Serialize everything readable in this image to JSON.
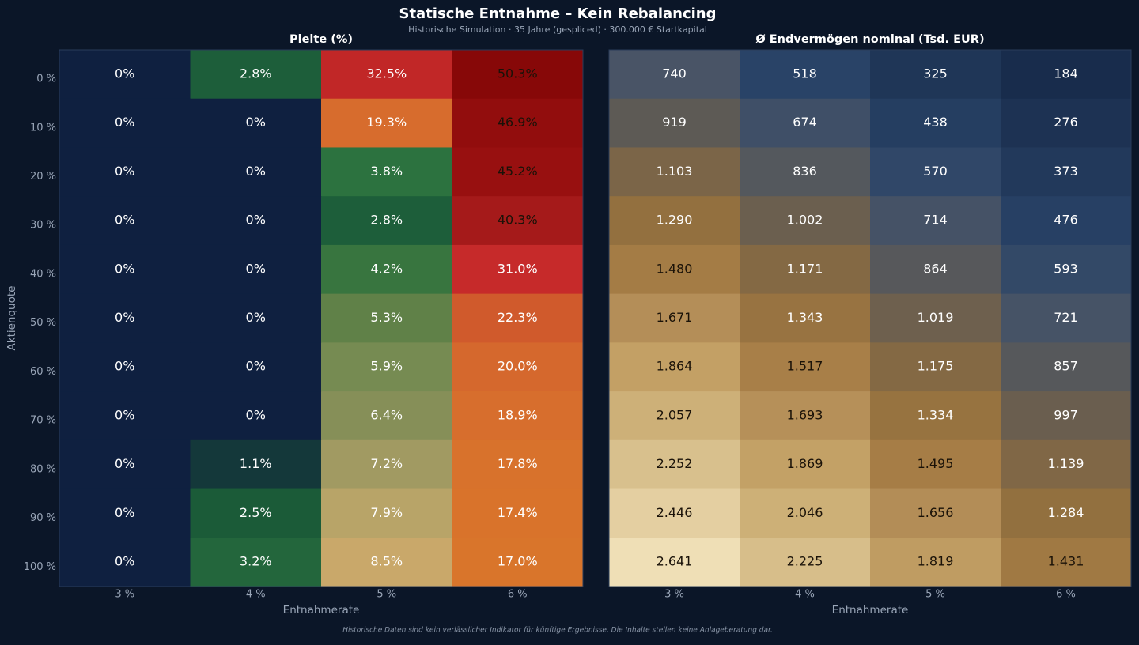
{
  "header": {
    "title": "Statische Entnahme – Kein Rebalancing",
    "subtitle": "Historische Simulation · 35 Jahre (gespliced) · 300.000 € Startkapital",
    "footer": "Historische Daten sind kein verlässlicher Indikator für künftige Ergebnisse. Die Inhalte stellen keine Anlageberatung dar."
  },
  "chart_data": [
    {
      "type": "heatmap",
      "title": "Pleite (%)",
      "x_label": "Entnahmerate",
      "y_label": "Aktienquote",
      "categories": [
        "3 %",
        "4 %",
        "5 %",
        "6 %"
      ],
      "rows": [
        "0 %",
        "10 %",
        "20 %",
        "30 %",
        "40 %",
        "50 %",
        "60 %",
        "70 %",
        "80 %",
        "90 %",
        "100 %"
      ],
      "values": [
        [
          0,
          2.8,
          32.5,
          50.3
        ],
        [
          0,
          0,
          19.3,
          46.9
        ],
        [
          0,
          0,
          3.8,
          45.2
        ],
        [
          0,
          0,
          2.8,
          40.3
        ],
        [
          0,
          0,
          4.2,
          31.0
        ],
        [
          0,
          0,
          5.3,
          22.3
        ],
        [
          0,
          0,
          5.9,
          20.0
        ],
        [
          0,
          0,
          6.4,
          18.9
        ],
        [
          0,
          1.1,
          7.2,
          17.8
        ],
        [
          0,
          2.5,
          7.9,
          17.4
        ],
        [
          0,
          3.2,
          8.5,
          17.0
        ]
      ],
      "value_labels": [
        [
          "0%",
          "2.8%",
          "32.5%",
          "50.3%"
        ],
        [
          "0%",
          "0%",
          "19.3%",
          "46.9%"
        ],
        [
          "0%",
          "0%",
          "3.8%",
          "45.2%"
        ],
        [
          "0%",
          "0%",
          "2.8%",
          "40.3%"
        ],
        [
          "0%",
          "0%",
          "4.2%",
          "31.0%"
        ],
        [
          "0%",
          "0%",
          "5.3%",
          "22.3%"
        ],
        [
          "0%",
          "0%",
          "5.9%",
          "20.0%"
        ],
        [
          "0%",
          "0%",
          "6.4%",
          "18.9%"
        ],
        [
          "0%",
          "1.1%",
          "7.2%",
          "17.8%"
        ],
        [
          "0%",
          "2.5%",
          "7.9%",
          "17.4%"
        ],
        [
          "0%",
          "3.2%",
          "8.5%",
          "17.0%"
        ]
      ]
    },
    {
      "type": "heatmap",
      "title": "Ø Endvermögen nominal (Tsd. EUR)",
      "x_label": "Entnahmerate",
      "categories": [
        "3 %",
        "4 %",
        "5 %",
        "6 %"
      ],
      "values": [
        [
          740,
          518,
          325,
          184
        ],
        [
          919,
          674,
          438,
          276
        ],
        [
          1103,
          836,
          570,
          373
        ],
        [
          1290,
          1002,
          714,
          476
        ],
        [
          1480,
          1171,
          864,
          593
        ],
        [
          1671,
          1343,
          1019,
          721
        ],
        [
          1864,
          1517,
          1175,
          857
        ],
        [
          2057,
          1693,
          1334,
          997
        ],
        [
          2252,
          1869,
          1495,
          1139
        ],
        [
          2446,
          2046,
          1656,
          1284
        ],
        [
          2641,
          2225,
          1819,
          1431
        ]
      ],
      "value_labels": [
        [
          "740",
          "518",
          "325",
          "184"
        ],
        [
          "919",
          "674",
          "438",
          "276"
        ],
        [
          "1.103",
          "836",
          "570",
          "373"
        ],
        [
          "1.290",
          "1.002",
          "714",
          "476"
        ],
        [
          "1.480",
          "1.171",
          "864",
          "593"
        ],
        [
          "1.671",
          "1.343",
          "1.019",
          "721"
        ],
        [
          "1.864",
          "1.517",
          "1.175",
          "857"
        ],
        [
          "2.057",
          "1.693",
          "1.334",
          "997"
        ],
        [
          "2.252",
          "1.869",
          "1.495",
          "1.139"
        ],
        [
          "2.446",
          "2.046",
          "1.656",
          "1.284"
        ],
        [
          "2.641",
          "2.225",
          "1.819",
          "1.431"
        ]
      ]
    }
  ]
}
